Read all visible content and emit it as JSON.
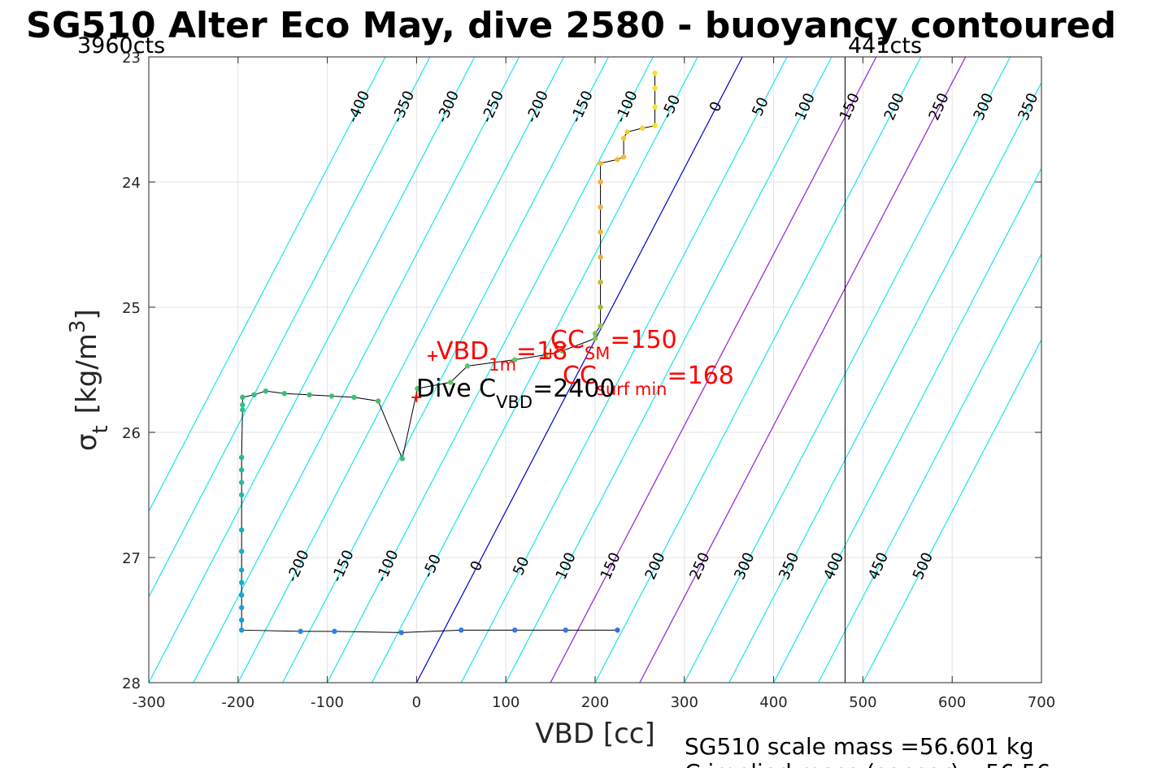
{
  "chart_data": {
    "type": "scatter",
    "title": "SG510 Alter Eco May, dive 2580 - buoyancy contoured",
    "corner_labels": {
      "left": "3960cts",
      "right": "441cts"
    },
    "xlabel": "VBD [cc]",
    "ylabel_main": "σ",
    "ylabel_sub": "t",
    "ylabel_unit": "[kg/m",
    "ylabel_sup": "3",
    "ylabel_close": "]",
    "xlim": [
      -300,
      700
    ],
    "ylim": [
      23,
      28
    ],
    "y_reversed": true,
    "grid": true,
    "x_ticks": [
      "-300",
      "-200",
      "-100",
      "0",
      "100",
      "200",
      "300",
      "400",
      "500",
      "600",
      "700"
    ],
    "y_ticks": [
      "23",
      "24",
      "25",
      "26",
      "27",
      "28"
    ],
    "contour_slope_cc_per_kgm3": 73,
    "contours_cyan": [
      -400,
      -350,
      -300,
      -250,
      -200,
      -150,
      -100,
      -50,
      50,
      100,
      150,
      200,
      250,
      300,
      350,
      400,
      450,
      500
    ],
    "contour_blue": 0,
    "contours_purple": [
      150,
      250
    ],
    "contour_label_sets": [
      {
        "row": "top",
        "labels": [
          "-400",
          "-350",
          "-300",
          "-250",
          "-200",
          "-150",
          "-100",
          "-50",
          "0",
          "50",
          "100",
          "150",
          "200",
          "250",
          "300",
          "350",
          "400",
          "450",
          "500"
        ]
      },
      {
        "row": "bottom",
        "labels": [
          "-200",
          "-150",
          "-100",
          "-50",
          "0",
          "50",
          "100",
          "150",
          "200",
          "250",
          "300",
          "350",
          "400",
          "450",
          "500"
        ]
      }
    ],
    "vertical_line_x": 480,
    "profile": [
      {
        "x": 267,
        "y": 23.13,
        "c": "#f5e61f"
      },
      {
        "x": 267,
        "y": 23.25,
        "c": "#f5e61f"
      },
      {
        "x": 267,
        "y": 23.4,
        "c": "#f5e61f"
      },
      {
        "x": 267,
        "y": 23.55,
        "c": "#f5e61f"
      },
      {
        "x": 253,
        "y": 23.57,
        "c": "#f7d13a"
      },
      {
        "x": 236,
        "y": 23.6,
        "c": "#f7c63a"
      },
      {
        "x": 232,
        "y": 23.65,
        "c": "#f7c63a"
      },
      {
        "x": 232,
        "y": 23.8,
        "c": "#f9b93a"
      },
      {
        "x": 225,
        "y": 23.82,
        "c": "#f9b93a"
      },
      {
        "x": 206,
        "y": 23.85,
        "c": "#f9b93a"
      },
      {
        "x": 206,
        "y": 24.0,
        "c": "#f9b33a"
      },
      {
        "x": 206,
        "y": 24.2,
        "c": "#f6b33a"
      },
      {
        "x": 206,
        "y": 24.4,
        "c": "#f2b33a"
      },
      {
        "x": 206,
        "y": 24.6,
        "c": "#e0b33a"
      },
      {
        "x": 206,
        "y": 24.8,
        "c": "#c6b83a"
      },
      {
        "x": 206,
        "y": 25.0,
        "c": "#a8bd3a"
      },
      {
        "x": 206,
        "y": 25.15,
        "c": "#94c34a"
      },
      {
        "x": 200,
        "y": 25.21,
        "c": "#7cc653"
      },
      {
        "x": 200,
        "y": 25.25,
        "c": "#7cc653"
      },
      {
        "x": 163,
        "y": 25.35,
        "c": "#6fc75a"
      },
      {
        "x": 145,
        "y": 25.38,
        "c": "#6fc75a"
      },
      {
        "x": 110,
        "y": 25.42,
        "c": "#66c65f"
      },
      {
        "x": 57,
        "y": 25.47,
        "c": "#5fc560"
      },
      {
        "x": 38,
        "y": 25.6,
        "c": "#5fc560"
      },
      {
        "x": 1,
        "y": 25.65,
        "c": "#4fc36a"
      },
      {
        "x": -16,
        "y": 26.21,
        "c": "#45c170"
      },
      {
        "x": -43,
        "y": 25.75,
        "c": "#45c170"
      },
      {
        "x": -70,
        "y": 25.72,
        "c": "#3dc076"
      },
      {
        "x": -95,
        "y": 25.71,
        "c": "#3dc076"
      },
      {
        "x": -120,
        "y": 25.7,
        "c": "#3dc076"
      },
      {
        "x": -148,
        "y": 25.69,
        "c": "#37bf7a"
      },
      {
        "x": -169,
        "y": 25.67,
        "c": "#37bf7a"
      },
      {
        "x": -182,
        "y": 25.7,
        "c": "#33be80"
      },
      {
        "x": -195,
        "y": 25.72,
        "c": "#33be80"
      },
      {
        "x": -195,
        "y": 25.78,
        "c": "#2fbd88"
      },
      {
        "x": -195,
        "y": 25.82,
        "c": "#2fbd88"
      },
      {
        "x": -196,
        "y": 26.2,
        "c": "#28ba98"
      },
      {
        "x": -196,
        "y": 26.3,
        "c": "#28ba98"
      },
      {
        "x": -196,
        "y": 26.4,
        "c": "#28ba98"
      },
      {
        "x": -196,
        "y": 26.5,
        "c": "#24b6a4"
      },
      {
        "x": -196,
        "y": 26.78,
        "c": "#1eb1b2"
      },
      {
        "x": -196,
        "y": 26.95,
        "c": "#1caebb"
      },
      {
        "x": -196,
        "y": 27.1,
        "c": "#18a9c6"
      },
      {
        "x": -196,
        "y": 27.2,
        "c": "#18a9c6"
      },
      {
        "x": -196,
        "y": 27.3,
        "c": "#15a4d0"
      },
      {
        "x": -196,
        "y": 27.4,
        "c": "#15a4d0"
      },
      {
        "x": -196,
        "y": 27.5,
        "c": "#139fd8"
      },
      {
        "x": -196,
        "y": 27.58,
        "c": "#139fd8"
      },
      {
        "x": -130,
        "y": 27.59,
        "c": "#2b88e8"
      },
      {
        "x": -92,
        "y": 27.59,
        "c": "#2d80ea"
      },
      {
        "x": -17,
        "y": 27.6,
        "c": "#3478ec"
      },
      {
        "x": 50,
        "y": 27.58,
        "c": "#3478ec"
      },
      {
        "x": 110,
        "y": 27.58,
        "c": "#3a70ee"
      },
      {
        "x": 167,
        "y": 27.58,
        "c": "#3a70ee"
      },
      {
        "x": 225,
        "y": 27.58,
        "c": "#3e68f0"
      }
    ],
    "markers": [
      {
        "x": 18,
        "y": 25.39,
        "label_main": "VBD",
        "label_sub": "1m",
        "label_tail": "=18"
      },
      {
        "x": 0,
        "y": 25.72,
        "label_main": "",
        "label_sub": "",
        "label_tail": ""
      },
      {
        "x": 150,
        "y": 25.37,
        "label_main": "",
        "label_sub": "",
        "label_tail": ""
      }
    ],
    "annotations": {
      "cc_sm": {
        "main": "CC",
        "sub": "SM",
        "tail": "=150",
        "x": 148,
        "y": 25.29
      },
      "cc_surf": {
        "main": "CC",
        "sub": "surf min",
        "tail": "=168",
        "x": 162,
        "y": 25.59
      },
      "dive_cvbd": {
        "main": "Dive C",
        "sub": "VBD",
        "tail": "=2400",
        "x": 0,
        "y": 25.66
      }
    },
    "footer": {
      "line1": "SG510 scale mass =56.601 kg",
      "line2": "C    implied mass (sensor) =56.56"
    }
  }
}
